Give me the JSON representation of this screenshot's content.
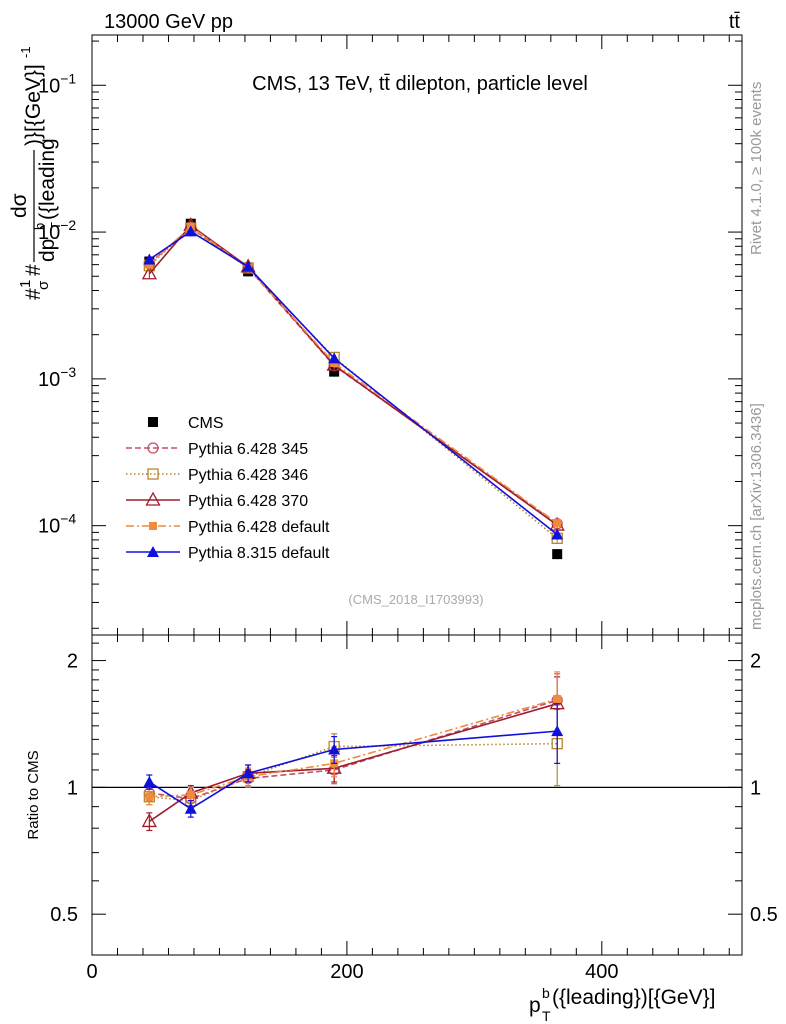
{
  "header": {
    "left": "13000 GeV pp",
    "right": "tt̄"
  },
  "side_labels": {
    "rivet": "Rivet 4.1.0, ≥ 100k events",
    "mcplots": "mcplots.cern.ch [arXiv:1306.3436]"
  },
  "chart_data": [
    {
      "type": "line",
      "title": "CMS, 13 TeV, tt̄ dilepton, particle level",
      "analysis_id": "(CMS_2018_I1703993)",
      "ylabel": "#1/σ# dσ / dp_T^b({leading}) [{GeV}]^-1",
      "ylabel_parts": {
        "prefix": "#",
        "one": "1",
        "sigma": "σ",
        "hash": "#",
        "num": "dσ",
        "den_main": "dp",
        "den_sub": "T",
        "den_sup": "b",
        "den_tail": "({leading",
        "right": ")}[{GeV}]",
        "right_sup": "-1"
      },
      "yscale": "log",
      "ylim": [
        1.8e-05,
        0.22
      ],
      "yticks": [
        {
          "value": 0.1,
          "label": "10",
          "exp": "−1"
        },
        {
          "value": 0.01,
          "label": "10",
          "exp": "−2"
        },
        {
          "value": 0.001,
          "label": "10",
          "exp": "−3"
        },
        {
          "value": 0.0001,
          "label": "10",
          "exp": "−4"
        }
      ],
      "xlim": [
        0,
        510
      ],
      "x": [
        45,
        77.5,
        122.5,
        190,
        365
      ],
      "series": [
        {
          "name": "CMS",
          "color": "#000000",
          "marker": "square",
          "dash": "none",
          "values": [
            0.0063,
            0.0114,
            0.0054,
            0.00112,
            6.4e-05
          ]
        },
        {
          "name": "Pythia 6.428 345",
          "color": "#c0506a",
          "marker": "circle-open",
          "dash": "dashed",
          "values": [
            0.0061,
            0.0107,
            0.0057,
            0.00123,
            0.000103
          ]
        },
        {
          "name": "Pythia 6.428 346",
          "color": "#b8862b",
          "marker": "square-open",
          "dash": "dotted",
          "values": [
            0.0059,
            0.0106,
            0.0057,
            0.0014,
            8.2e-05
          ]
        },
        {
          "name": "Pythia 6.428 370",
          "color": "#a01c2c",
          "marker": "triangle-open",
          "dash": "solid",
          "values": [
            0.0052,
            0.0111,
            0.0058,
            0.00124,
            0.000101
          ]
        },
        {
          "name": "Pythia 6.428 default",
          "color": "#f08a3c",
          "marker": "square-small",
          "dash": "dashdot",
          "values": [
            0.006,
            0.0109,
            0.0057,
            0.00128,
            0.000104
          ]
        },
        {
          "name": "Pythia 8.315 default",
          "color": "#1010dd",
          "marker": "triangle",
          "dash": "solid",
          "values": [
            0.0065,
            0.0101,
            0.0058,
            0.00138,
            8.7e-05
          ]
        }
      ]
    },
    {
      "type": "line",
      "title": "",
      "ylabel": "Ratio to CMS",
      "xlabel": "p_T^b({leading})[{GeV}]",
      "xlabel_parts": {
        "main": "p",
        "sub": "T",
        "sup": "b",
        "tail": "({leading})[{GeV}]"
      },
      "yscale": "log",
      "ylim": [
        0.4,
        2.3
      ],
      "yticks": [
        0.5,
        1,
        2
      ],
      "xlim": [
        0,
        510
      ],
      "xticks": [
        0,
        200,
        400
      ],
      "reference_line": 1,
      "x": [
        45,
        77.5,
        122.5,
        190,
        365
      ],
      "series": [
        {
          "name": "Pythia 6.428 345",
          "values": [
            0.97,
            0.94,
            1.05,
            1.1,
            1.61
          ],
          "err": [
            0.04,
            0.04,
            0.05,
            0.08,
            0.25
          ]
        },
        {
          "name": "Pythia 6.428 346",
          "values": [
            0.95,
            0.93,
            1.06,
            1.25,
            1.27
          ],
          "err": [
            0.04,
            0.04,
            0.05,
            0.09,
            0.26
          ]
        },
        {
          "name": "Pythia 6.428 370",
          "values": [
            0.83,
            0.97,
            1.08,
            1.11,
            1.58
          ],
          "err": [
            0.04,
            0.04,
            0.05,
            0.08,
            0.25
          ]
        },
        {
          "name": "Pythia 6.428 default",
          "values": [
            0.95,
            0.96,
            1.06,
            1.14,
            1.62
          ],
          "err": [
            0.04,
            0.04,
            0.05,
            0.08,
            0.26
          ]
        },
        {
          "name": "Pythia 8.315 default",
          "values": [
            1.03,
            0.89,
            1.08,
            1.23,
            1.36
          ],
          "err": [
            0.04,
            0.04,
            0.05,
            0.09,
            0.22
          ]
        }
      ]
    }
  ]
}
